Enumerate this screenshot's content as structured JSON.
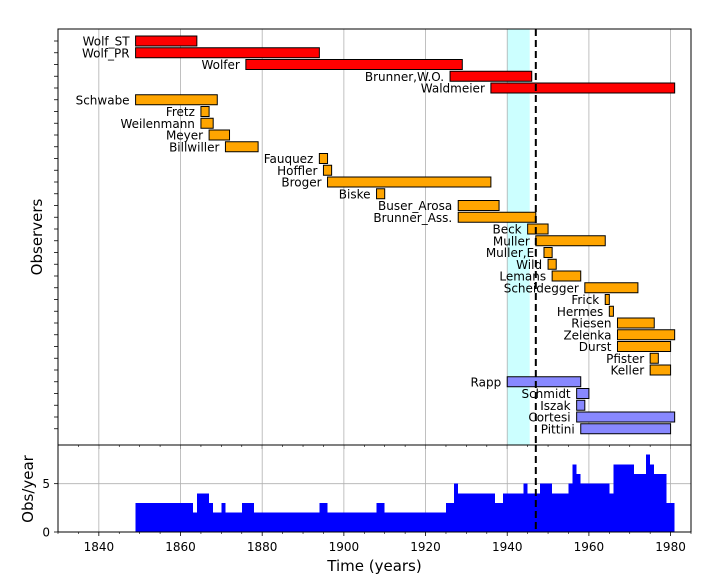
{
  "chart_data": [
    {
      "type": "gantt",
      "title": "",
      "ylabel": "Observers",
      "xlim": [
        1830,
        1985
      ],
      "grid": true,
      "highlight_span": {
        "x0": 1940,
        "x1": 1945.5,
        "color": "#ccffff"
      },
      "reference_line": {
        "x": 1947,
        "style": "dashed"
      },
      "group_colors": {
        "red": "#ff0000",
        "orange": "#ffa500",
        "blue": "#8888ff"
      },
      "observers": [
        {
          "name": "Wolf_ST",
          "start": 1849,
          "end": 1864,
          "group": "red"
        },
        {
          "name": "Wolf_PR",
          "start": 1849,
          "end": 1894,
          "group": "red"
        },
        {
          "name": "Wolfer",
          "start": 1876,
          "end": 1929,
          "group": "red"
        },
        {
          "name": "Brunner,W.O.",
          "start": 1926,
          "end": 1946,
          "group": "red"
        },
        {
          "name": "Waldmeier",
          "start": 1936,
          "end": 1981,
          "group": "red"
        },
        {
          "name": "Schwabe",
          "start": 1849,
          "end": 1869,
          "group": "orange"
        },
        {
          "name": "Fretz",
          "start": 1865,
          "end": 1867,
          "group": "orange"
        },
        {
          "name": "Weilenmann",
          "start": 1865,
          "end": 1868,
          "group": "orange"
        },
        {
          "name": "Meyer",
          "start": 1867,
          "end": 1872,
          "group": "orange"
        },
        {
          "name": "Billwiller",
          "start": 1871,
          "end": 1879,
          "group": "orange"
        },
        {
          "name": "Fauquez",
          "start": 1894,
          "end": 1896,
          "group": "orange"
        },
        {
          "name": "Hoffler",
          "start": 1895,
          "end": 1897,
          "group": "orange"
        },
        {
          "name": "Broger",
          "start": 1896,
          "end": 1936,
          "group": "orange"
        },
        {
          "name": "Biske",
          "start": 1908,
          "end": 1910,
          "group": "orange"
        },
        {
          "name": "Buser_Arosa",
          "start": 1928,
          "end": 1938,
          "group": "orange"
        },
        {
          "name": "Brunner_Ass.",
          "start": 1928,
          "end": 1947,
          "group": "orange"
        },
        {
          "name": "Beck",
          "start": 1945,
          "end": 1950,
          "group": "orange"
        },
        {
          "name": "Muller",
          "start": 1947,
          "end": 1964,
          "group": "orange"
        },
        {
          "name": "Muller,E.",
          "start": 1949,
          "end": 1951,
          "group": "orange"
        },
        {
          "name": "Wild",
          "start": 1950,
          "end": 1952,
          "group": "orange"
        },
        {
          "name": "Lemans",
          "start": 1951,
          "end": 1958,
          "group": "orange"
        },
        {
          "name": "Scheidegger",
          "start": 1959,
          "end": 1972,
          "group": "orange"
        },
        {
          "name": "Frick",
          "start": 1964,
          "end": 1965,
          "group": "orange"
        },
        {
          "name": "Hermes",
          "start": 1965,
          "end": 1966,
          "group": "orange"
        },
        {
          "name": "Riesen",
          "start": 1967,
          "end": 1976,
          "group": "orange"
        },
        {
          "name": "Zelenka",
          "start": 1967,
          "end": 1981,
          "group": "orange"
        },
        {
          "name": "Durst",
          "start": 1967,
          "end": 1980,
          "group": "orange"
        },
        {
          "name": "Pfister",
          "start": 1975,
          "end": 1977,
          "group": "orange"
        },
        {
          "name": "Keller",
          "start": 1975,
          "end": 1980,
          "group": "orange"
        },
        {
          "name": "Rapp",
          "start": 1940,
          "end": 1958,
          "group": "blue"
        },
        {
          "name": "Schmidt",
          "start": 1957,
          "end": 1960,
          "group": "blue"
        },
        {
          "name": "Iszak",
          "start": 1957,
          "end": 1959,
          "group": "blue"
        },
        {
          "name": "Cortesi",
          "start": 1957,
          "end": 1981,
          "group": "blue"
        },
        {
          "name": "Pittini",
          "start": 1958,
          "end": 1980,
          "group": "blue"
        }
      ]
    },
    {
      "type": "area",
      "title": "",
      "xlabel": "Time (years)",
      "ylabel": "Obs/year",
      "xlim": [
        1830,
        1985
      ],
      "ylim": [
        0,
        9
      ],
      "yticks": [
        0,
        5
      ],
      "xticks": [
        1840,
        1860,
        1880,
        1900,
        1920,
        1940,
        1960,
        1980
      ],
      "color": "#0000ff",
      "reference_line": {
        "x": 1947,
        "style": "dashed"
      },
      "steps": [
        {
          "x0": 1849,
          "x1": 1863,
          "v": 3
        },
        {
          "x0": 1863,
          "x1": 1864,
          "v": 2
        },
        {
          "x0": 1864,
          "x1": 1867,
          "v": 4
        },
        {
          "x0": 1867,
          "x1": 1868,
          "v": 3
        },
        {
          "x0": 1868,
          "x1": 1870,
          "v": 2
        },
        {
          "x0": 1870,
          "x1": 1871,
          "v": 3
        },
        {
          "x0": 1871,
          "x1": 1875,
          "v": 2
        },
        {
          "x0": 1875,
          "x1": 1878,
          "v": 3
        },
        {
          "x0": 1878,
          "x1": 1894,
          "v": 2
        },
        {
          "x0": 1894,
          "x1": 1896,
          "v": 3
        },
        {
          "x0": 1896,
          "x1": 1908,
          "v": 2
        },
        {
          "x0": 1908,
          "x1": 1910,
          "v": 3
        },
        {
          "x0": 1910,
          "x1": 1925,
          "v": 2
        },
        {
          "x0": 1925,
          "x1": 1927,
          "v": 3
        },
        {
          "x0": 1927,
          "x1": 1928,
          "v": 5
        },
        {
          "x0": 1928,
          "x1": 1937,
          "v": 4
        },
        {
          "x0": 1937,
          "x1": 1939,
          "v": 3
        },
        {
          "x0": 1939,
          "x1": 1944,
          "v": 4
        },
        {
          "x0": 1944,
          "x1": 1945,
          "v": 5
        },
        {
          "x0": 1945,
          "x1": 1948,
          "v": 4
        },
        {
          "x0": 1948,
          "x1": 1951,
          "v": 5
        },
        {
          "x0": 1951,
          "x1": 1955,
          "v": 4
        },
        {
          "x0": 1955,
          "x1": 1956,
          "v": 5
        },
        {
          "x0": 1956,
          "x1": 1957,
          "v": 7
        },
        {
          "x0": 1957,
          "x1": 1958,
          "v": 6
        },
        {
          "x0": 1958,
          "x1": 1965,
          "v": 5
        },
        {
          "x0": 1965,
          "x1": 1966,
          "v": 4
        },
        {
          "x0": 1966,
          "x1": 1971,
          "v": 7
        },
        {
          "x0": 1971,
          "x1": 1974,
          "v": 6
        },
        {
          "x0": 1974,
          "x1": 1975,
          "v": 8
        },
        {
          "x0": 1975,
          "x1": 1976,
          "v": 7
        },
        {
          "x0": 1976,
          "x1": 1979,
          "v": 6
        },
        {
          "x0": 1979,
          "x1": 1981,
          "v": 3
        }
      ]
    }
  ]
}
